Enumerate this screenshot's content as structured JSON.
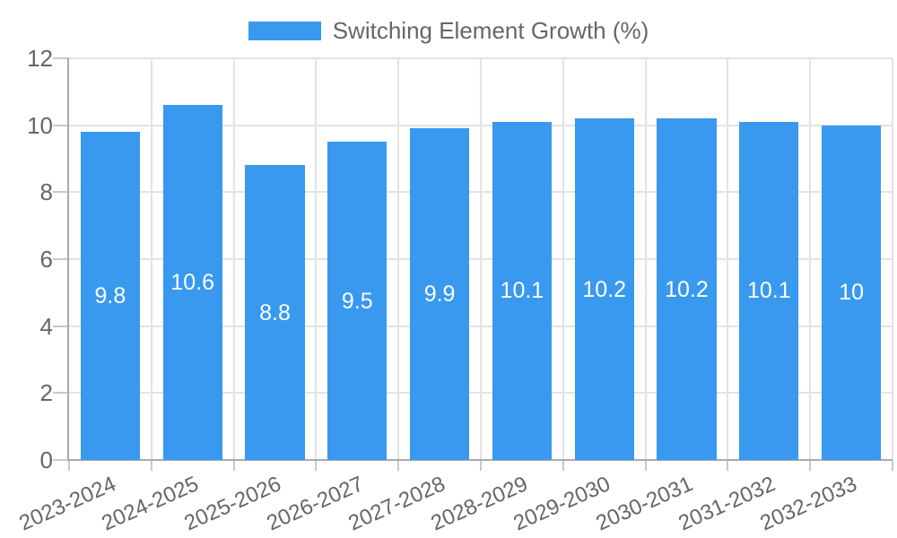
{
  "legend": {
    "label": "Switching Element Growth (%)"
  },
  "colors": {
    "bar": "#3899ee",
    "grid": "#e3e3e3",
    "tick": "#c9c9c9",
    "axis": "#aaaaaa",
    "label_text": "#666666",
    "value_label_text": "#ffffff",
    "background": "#ffffff"
  },
  "chart_data": {
    "type": "bar",
    "title": "",
    "categories": [
      "2023-2024",
      "2024-2025",
      "2025-2026",
      "2026-2027",
      "2027-2028",
      "2028-2029",
      "2029-2030",
      "2030-2031",
      "2031-2032",
      "2032-2033"
    ],
    "series": [
      {
        "name": "Switching Element Growth (%)",
        "values": [
          9.8,
          10.6,
          8.8,
          9.5,
          9.9,
          10.1,
          10.2,
          10.2,
          10.1,
          10
        ]
      }
    ],
    "value_labels": [
      "9.8",
      "10.6",
      "8.8",
      "9.5",
      "9.9",
      "10.1",
      "10.2",
      "10.2",
      "10.1",
      "10"
    ],
    "value_labels_position": "inside-center",
    "xlabel": "",
    "ylabel": "",
    "ylim": [
      0,
      12
    ],
    "yticks": [
      0,
      2,
      4,
      6,
      8,
      10,
      12
    ],
    "grid": true,
    "legend_position": "top-center"
  }
}
